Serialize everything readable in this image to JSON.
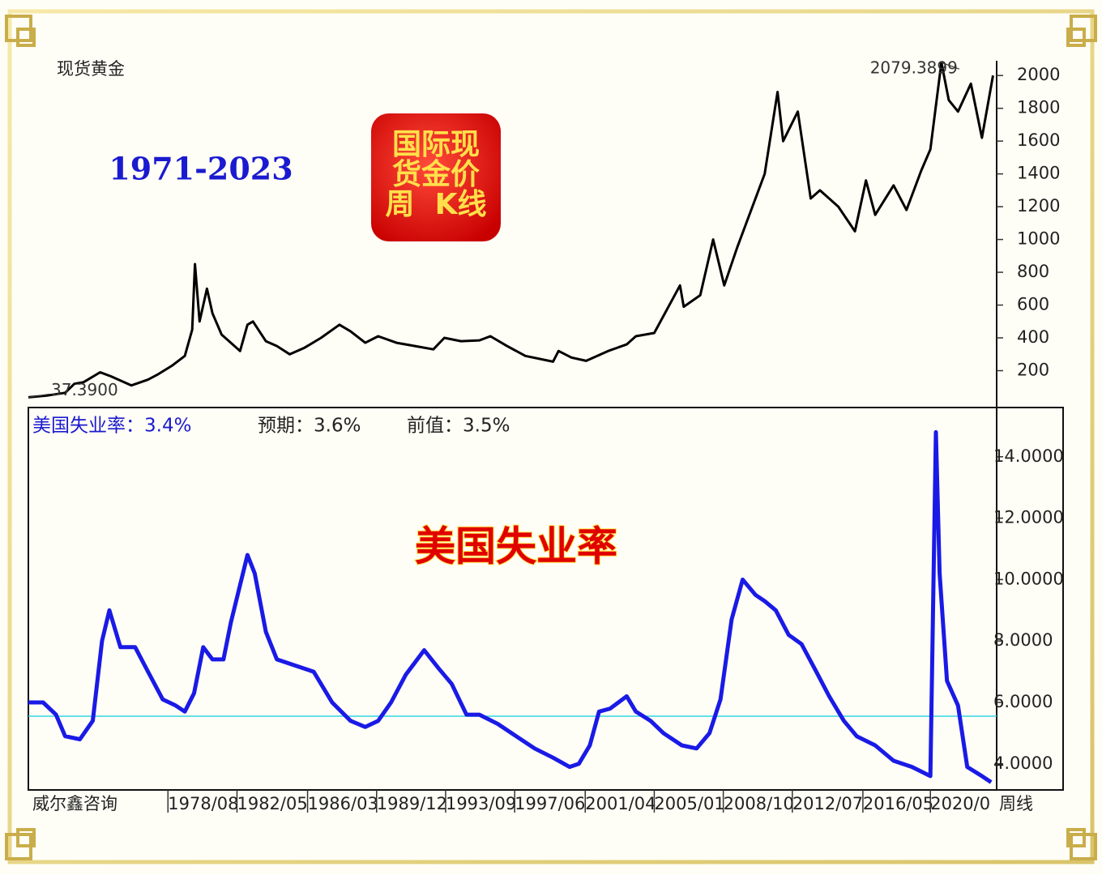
{
  "page": {
    "watermark": "威尔鑫咨询",
    "period": "周线"
  },
  "chart_data": [
    {
      "type": "line",
      "title": "现货黄金",
      "annotation": "1971-2023",
      "badge": [
        "国际现",
        "货金价",
        "周  K线"
      ],
      "color": "#000000",
      "x": [
        1971.0,
        1972.0,
        1973.0,
        1973.5,
        1974.0,
        1974.9,
        1975.5,
        1976.6,
        1977.5,
        1978.0,
        1978.8,
        1979.5,
        1979.9,
        1980.05,
        1980.3,
        1980.7,
        1981.0,
        1981.5,
        1982.5,
        1982.9,
        1983.2,
        1983.9,
        1984.5,
        1985.2,
        1986.0,
        1986.9,
        1987.9,
        1988.5,
        1989.3,
        1990.0,
        1991.0,
        1992.0,
        1993.0,
        1993.6,
        1994.5,
        1995.5,
        1996.1,
        1997.0,
        1998.0,
        1999.5,
        1999.8,
        2000.5,
        2001.3,
        2002.5,
        2003.5,
        2004.0,
        2005.0,
        2006.4,
        2006.6,
        2007.5,
        2008.2,
        2008.8,
        2009.5,
        2010.0,
        2011.0,
        2011.7,
        2012.0,
        2012.8,
        2013.5,
        2014.0,
        2015.0,
        2015.9,
        2016.5,
        2017.0,
        2018.0,
        2018.7,
        2019.5,
        2020.0,
        2020.6,
        2021.0,
        2021.5,
        2022.2,
        2022.8,
        2023.4
      ],
      "values": [
        37.39,
        48,
        65,
        120,
        130,
        190,
        165,
        110,
        145,
        175,
        230,
        290,
        450,
        850,
        500,
        700,
        550,
        420,
        320,
        480,
        500,
        380,
        350,
        300,
        340,
        400,
        480,
        440,
        370,
        410,
        370,
        350,
        330,
        400,
        380,
        385,
        410,
        350,
        290,
        255,
        320,
        280,
        260,
        320,
        360,
        410,
        430,
        720,
        590,
        660,
        1000,
        720,
        950,
        1100,
        1400,
        1900,
        1600,
        1780,
        1250,
        1300,
        1200,
        1050,
        1360,
        1150,
        1330,
        1180,
        1420,
        1550,
        2079.3899,
        1850,
        1780,
        1950,
        1620,
        2000
      ],
      "value_labels": [
        "37.3900",
        null,
        null,
        null,
        null,
        null,
        null,
        null,
        null,
        null,
        null,
        null,
        null,
        null,
        null,
        null,
        null,
        null,
        null,
        null,
        null,
        null,
        null,
        null,
        null,
        null,
        null,
        null,
        null,
        null,
        null,
        null,
        null,
        null,
        null,
        null,
        null,
        null,
        null,
        null,
        null,
        null,
        null,
        null,
        null,
        null,
        null,
        null,
        null,
        null,
        null,
        null,
        null,
        null,
        null,
        null,
        null,
        null,
        null,
        null,
        null,
        null,
        null,
        null,
        null,
        null,
        null,
        null,
        "2079.3899",
        null,
        null,
        null,
        null,
        null
      ],
      "xlim": [
        1971.0,
        2023.6
      ],
      "ylim": [
        -10,
        2090
      ],
      "yticks": [
        200,
        400,
        600,
        800,
        1000,
        1200,
        1400,
        1600,
        1800,
        2000
      ]
    },
    {
      "type": "line",
      "header": [
        "美国失业率：3.4%",
        "预期：3.6%",
        "前值：3.5%"
      ],
      "badge": "美国失业率",
      "color": "#1a1ae6",
      "hline": 5.55,
      "hline_color": "#33d6e0",
      "x": [
        1971.0,
        1971.8,
        1972.5,
        1973.0,
        1973.8,
        1974.5,
        1975.0,
        1975.4,
        1976.0,
        1976.8,
        1977.5,
        1978.3,
        1979.0,
        1979.5,
        1980.0,
        1980.5,
        1981.0,
        1981.6,
        1982.0,
        1982.9,
        1983.3,
        1983.9,
        1984.5,
        1985.5,
        1986.5,
        1987.5,
        1988.5,
        1989.3,
        1990.0,
        1990.7,
        1991.5,
        1992.5,
        1993.3,
        1994.0,
        1994.8,
        1995.5,
        1996.5,
        1997.5,
        1998.5,
        1999.5,
        2000.4,
        2000.9,
        2001.5,
        2002.0,
        2002.6,
        2003.5,
        2004.0,
        2004.8,
        2005.5,
        2006.5,
        2007.3,
        2008.0,
        2008.6,
        2009.2,
        2009.8,
        2010.5,
        2011.0,
        2011.6,
        2012.3,
        2013.0,
        2013.8,
        2014.5,
        2015.3,
        2016.0,
        2017.0,
        2018.0,
        2019.0,
        2020.0,
        2020.3,
        2020.5,
        2020.9,
        2021.5,
        2022.0,
        2022.8,
        2023.3
      ],
      "values": [
        6.0,
        6.0,
        5.6,
        4.9,
        4.8,
        5.4,
        8.0,
        9.0,
        7.8,
        7.8,
        7.0,
        6.1,
        5.9,
        5.7,
        6.3,
        7.8,
        7.4,
        7.4,
        8.6,
        10.8,
        10.2,
        8.3,
        7.4,
        7.2,
        7.0,
        6.0,
        5.4,
        5.2,
        5.4,
        6.0,
        6.9,
        7.7,
        7.1,
        6.6,
        5.6,
        5.6,
        5.3,
        4.9,
        4.5,
        4.2,
        3.9,
        4.0,
        4.6,
        5.7,
        5.8,
        6.2,
        5.7,
        5.4,
        5.0,
        4.6,
        4.5,
        5.0,
        6.1,
        8.7,
        10.0,
        9.5,
        9.3,
        9.0,
        8.2,
        7.9,
        7.0,
        6.2,
        5.4,
        4.9,
        4.6,
        4.1,
        3.9,
        3.6,
        14.8,
        10.2,
        6.7,
        5.9,
        3.9,
        3.6,
        3.4
      ],
      "xlim": [
        1971.0,
        2023.6
      ],
      "ylim": [
        3.15,
        15.55
      ],
      "yticks": [
        {
          "value": 4,
          "label": "4.0000"
        },
        {
          "value": 6,
          "label": "6.0000"
        },
        {
          "value": 8,
          "label": "8.0000"
        },
        {
          "value": 10,
          "label": "10.0000"
        },
        {
          "value": 12,
          "label": "12.0000"
        },
        {
          "value": 14,
          "label": "14.0000"
        }
      ],
      "xticks": [
        {
          "value": 1978.583,
          "label": "1978/08"
        },
        {
          "value": 1982.333,
          "label": "1982/05"
        },
        {
          "value": 1986.167,
          "label": "1986/03"
        },
        {
          "value": 1989.917,
          "label": "1989/12"
        },
        {
          "value": 1993.667,
          "label": "1993/09"
        },
        {
          "value": 1997.417,
          "label": "1997/06"
        },
        {
          "value": 2001.25,
          "label": "2001/04"
        },
        {
          "value": 2005.0,
          "label": "2005/01"
        },
        {
          "value": 2008.75,
          "label": "2008/10"
        },
        {
          "value": 2012.5,
          "label": "2012/07"
        },
        {
          "value": 2016.333,
          "label": "2016/05"
        },
        {
          "value": 2020.0,
          "label": "2020/0"
        }
      ]
    }
  ]
}
